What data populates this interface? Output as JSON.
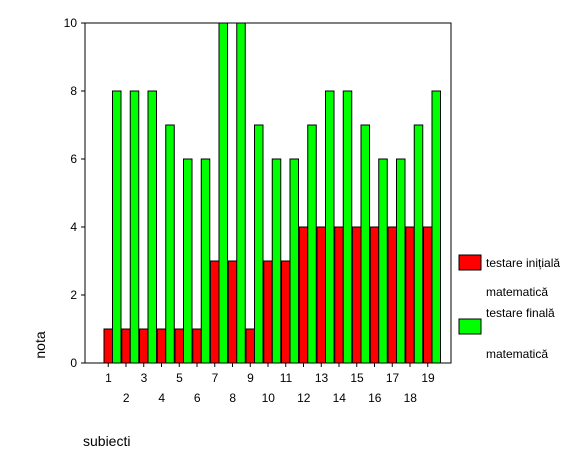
{
  "chart_data": {
    "type": "bar",
    "xlabel": "subiecti",
    "ylabel": "nota",
    "ylim": [
      0,
      10
    ],
    "yticks": [
      0,
      2,
      4,
      6,
      8,
      10
    ],
    "categories": [
      "1",
      "2",
      "3",
      "4",
      "5",
      "6",
      "7",
      "8",
      "9",
      "10",
      "11",
      "12",
      "13",
      "14",
      "15",
      "16",
      "17",
      "18",
      "19"
    ],
    "series": [
      {
        "name": "testare inițială matematică",
        "legend_lines": [
          "testare inițială",
          "matematică"
        ],
        "color": "#ff0000",
        "values": [
          1,
          1,
          1,
          1,
          1,
          1,
          3,
          3,
          1,
          3,
          3,
          4,
          4,
          4,
          4,
          4,
          4,
          4,
          4
        ]
      },
      {
        "name": "testare finală matematică",
        "legend_lines": [
          "testare finală",
          "matematică"
        ],
        "color": "#00ff00",
        "values": [
          8,
          8,
          8,
          7,
          6,
          6,
          10,
          10,
          7,
          6,
          6,
          7,
          8,
          8,
          7,
          6,
          6,
          7,
          8
        ]
      }
    ],
    "legend_position": "right",
    "grid": false
  }
}
